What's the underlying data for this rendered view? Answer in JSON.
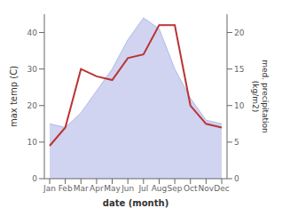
{
  "chart_data": {
    "type": "area_line",
    "categories": [
      "Jan",
      "Feb",
      "Mar",
      "Apr",
      "May",
      "Jun",
      "Jul",
      "Aug",
      "Sep",
      "Oct",
      "Nov",
      "Dec"
    ],
    "series": [
      {
        "type": "area",
        "color": "#b0b8e8",
        "values": [
          15,
          14,
          18,
          24,
          30,
          38,
          44,
          41,
          30,
          22,
          16,
          15
        ]
      },
      {
        "type": "line",
        "color": "#bb3333",
        "axis": "y2",
        "values": [
          4.5,
          7,
          15,
          14,
          13.5,
          16.5,
          17,
          21,
          21,
          10,
          7.5,
          7
        ]
      }
    ],
    "xlabel": "date (month)",
    "ylabel": "max temp (C)",
    "y2label": "med. precipitation\n(kg/m2)",
    "ylim": [
      0,
      45
    ],
    "yticks": [
      0,
      10,
      20,
      30,
      40
    ],
    "y2lim": [
      0,
      22.5
    ],
    "y2ticks": [
      0,
      5,
      10,
      15,
      20
    ],
    "grid": false
  }
}
